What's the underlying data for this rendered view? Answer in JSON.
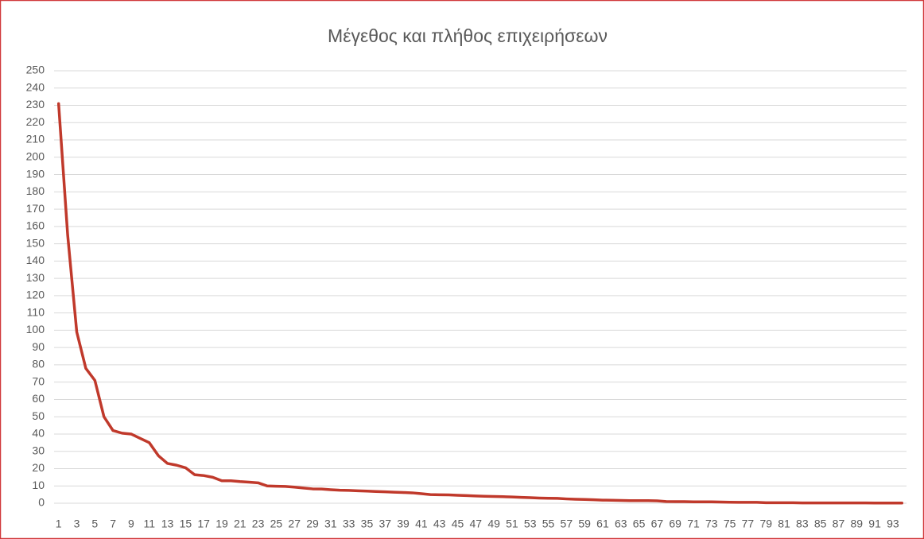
{
  "chart_data": {
    "type": "line",
    "title": "Μέγεθος και πλήθος επιχειρήσεων",
    "categories": [
      "1",
      null,
      "3",
      null,
      "5",
      null,
      "7",
      null,
      "9",
      null,
      "11",
      null,
      "13",
      null,
      "15",
      null,
      "17",
      null,
      "19",
      null,
      "21",
      null,
      "23",
      null,
      "25",
      null,
      "27",
      null,
      "29",
      null,
      "31",
      null,
      "33",
      null,
      "35",
      null,
      "37",
      null,
      "39",
      null,
      "41",
      null,
      "43",
      null,
      "45",
      null,
      "47",
      null,
      "49",
      null,
      "51",
      null,
      "53",
      null,
      "55",
      null,
      "57",
      null,
      "59",
      null,
      "61",
      null,
      "63",
      null,
      "65",
      null,
      "67",
      null,
      "69",
      null,
      "71",
      null,
      "73",
      null,
      "75",
      null,
      "77",
      null,
      "79",
      null,
      "81",
      null,
      "83",
      null,
      "85",
      null,
      "87",
      null,
      "89",
      null,
      "91",
      null,
      "93",
      null
    ],
    "series": [
      {
        "color": "#c0392b",
        "values": [
          231,
          155,
          99,
          78,
          71,
          50,
          42,
          40.5,
          40,
          37.5,
          35,
          27.5,
          23,
          22,
          20.5,
          16.5,
          16,
          15,
          13,
          13,
          12.5,
          12.2,
          11.8,
          10,
          9.8,
          9.7,
          9.3,
          8.8,
          8.3,
          8.2,
          7.8,
          7.5,
          7.4,
          7.2,
          7,
          6.8,
          6.6,
          6.4,
          6.2,
          6,
          5.5,
          5,
          4.9,
          4.8,
          4.6,
          4.4,
          4.2,
          4,
          3.9,
          3.8,
          3.6,
          3.4,
          3.2,
          3,
          2.9,
          2.8,
          2.5,
          2.3,
          2.2,
          2,
          1.8,
          1.7,
          1.6,
          1.5,
          1.5,
          1.5,
          1.4,
          1,
          0.9,
          0.9,
          0.8,
          0.8,
          0.8,
          0.7,
          0.6,
          0.5,
          0.5,
          0.5,
          0.3,
          0.3,
          0.3,
          0.3,
          0.2,
          0.2,
          0.2,
          0.2,
          0.2,
          0.2,
          0.2,
          0.2,
          0.1,
          0.1,
          0.1,
          0.1
        ]
      }
    ],
    "ylim": [
      0,
      250
    ],
    "yticks": [
      0,
      10,
      20,
      30,
      40,
      50,
      60,
      70,
      80,
      90,
      100,
      110,
      120,
      130,
      140,
      150,
      160,
      170,
      180,
      190,
      200,
      210,
      220,
      230,
      240,
      250
    ],
    "grid": true
  }
}
